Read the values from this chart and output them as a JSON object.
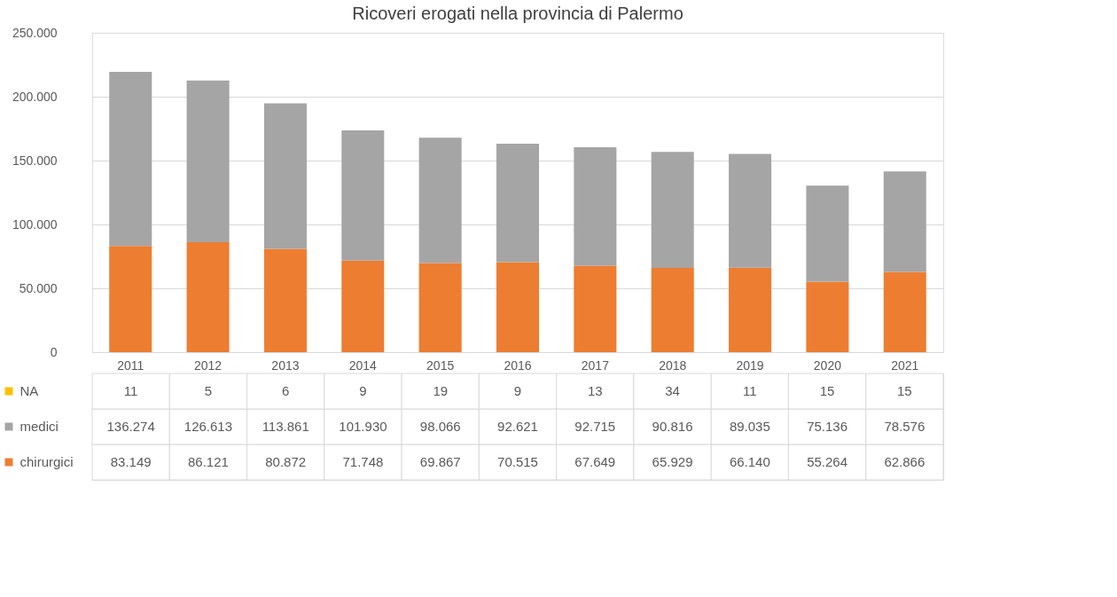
{
  "chart_data": {
    "type": "bar",
    "title": "Ricoveri erogati nella provincia di Palermo",
    "stacked": true,
    "categories": [
      "2011",
      "2012",
      "2013",
      "2014",
      "2015",
      "2016",
      "2017",
      "2018",
      "2019",
      "2020",
      "2021"
    ],
    "series": [
      {
        "name": "chirurgici",
        "color": "#ed7d31",
        "values": [
          83149,
          86121,
          80872,
          71748,
          69867,
          70515,
          67649,
          65929,
          66140,
          55264,
          62866
        ],
        "value_labels": [
          "83.149",
          "86.121",
          "80.872",
          "71.748",
          "69.867",
          "70.515",
          "67.649",
          "65.929",
          "66.140",
          "55.264",
          "62.866"
        ]
      },
      {
        "name": "medici",
        "color": "#a5a5a5",
        "values": [
          136274,
          126613,
          113861,
          101930,
          98066,
          92621,
          92715,
          90816,
          89035,
          75136,
          78576
        ],
        "value_labels": [
          "136.274",
          "126.613",
          "113.861",
          "101.930",
          "98.066",
          "92.621",
          "92.715",
          "90.816",
          "89.035",
          "75.136",
          "78.576"
        ]
      },
      {
        "name": "NA",
        "color": "#ffc000",
        "values": [
          11,
          5,
          6,
          9,
          19,
          9,
          13,
          34,
          11,
          15,
          15
        ],
        "value_labels": [
          "11",
          "5",
          "6",
          "9",
          "19",
          "9",
          "13",
          "34",
          "11",
          "15",
          "15"
        ]
      }
    ],
    "ylim": [
      0,
      250000
    ],
    "yticks": [
      0,
      {
        "value": 50000,
        "label": "50.000"
      },
      {
        "value": 100000,
        "label": "100.000"
      },
      {
        "value": 150000,
        "label": "150.000"
      },
      {
        "value": 200000,
        "label": "200.000"
      },
      {
        "value": 250000,
        "label": "250.000"
      }
    ],
    "grid": "y",
    "legend": "bottom"
  }
}
